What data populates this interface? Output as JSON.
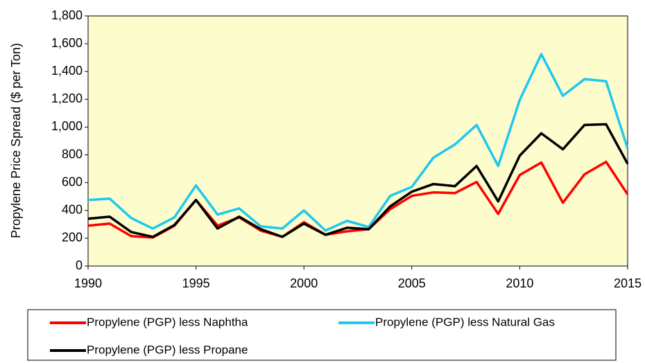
{
  "chart_data": {
    "type": "line",
    "y_label": "Propylene Price Spread ($ per Ton)",
    "x": [
      1990,
      1991,
      1992,
      1993,
      1994,
      1995,
      1996,
      1997,
      1998,
      1999,
      2000,
      2001,
      2002,
      2003,
      2004,
      2005,
      2006,
      2007,
      2008,
      2009,
      2010,
      2011,
      2012,
      2013,
      2014,
      2015
    ],
    "series": [
      {
        "name": "Propylene (PGP) less Naphtha",
        "color": "#ff0000",
        "values": [
          290,
          305,
          215,
          205,
          290,
          475,
          290,
          350,
          255,
          210,
          315,
          225,
          250,
          265,
          410,
          505,
          530,
          525,
          605,
          375,
          655,
          745,
          455,
          660,
          750,
          515
        ]
      },
      {
        "name": "Propylene (PGP) less Natural Gas",
        "color": "#1ec8f0",
        "values": [
          475,
          485,
          345,
          270,
          350,
          580,
          370,
          415,
          285,
          270,
          400,
          255,
          325,
          280,
          505,
          570,
          780,
          875,
          1015,
          720,
          1195,
          1525,
          1225,
          1345,
          1330,
          845
        ]
      },
      {
        "name": "Propylene (PGP) less Propane",
        "color": "#000000",
        "values": [
          340,
          355,
          245,
          210,
          295,
          475,
          270,
          355,
          265,
          210,
          305,
          225,
          275,
          265,
          430,
          535,
          590,
          575,
          720,
          465,
          795,
          955,
          840,
          1015,
          1020,
          735
        ]
      }
    ],
    "xlim": [
      1990,
      2015
    ],
    "xticks": [
      1990,
      1995,
      2000,
      2005,
      2010,
      2015
    ],
    "ylim": [
      0,
      1800
    ],
    "yticks": [
      0,
      200,
      400,
      600,
      800,
      {
        "value": 1000,
        "label": "1,000"
      },
      {
        "value": 1200,
        "label": "1,200"
      },
      {
        "value": 1400,
        "label": "1,400"
      },
      {
        "value": 1600,
        "label": "1,600"
      },
      {
        "value": 1800,
        "label": "1,800"
      }
    ],
    "plot_background": "#fcfccc",
    "legend": "bottom"
  }
}
